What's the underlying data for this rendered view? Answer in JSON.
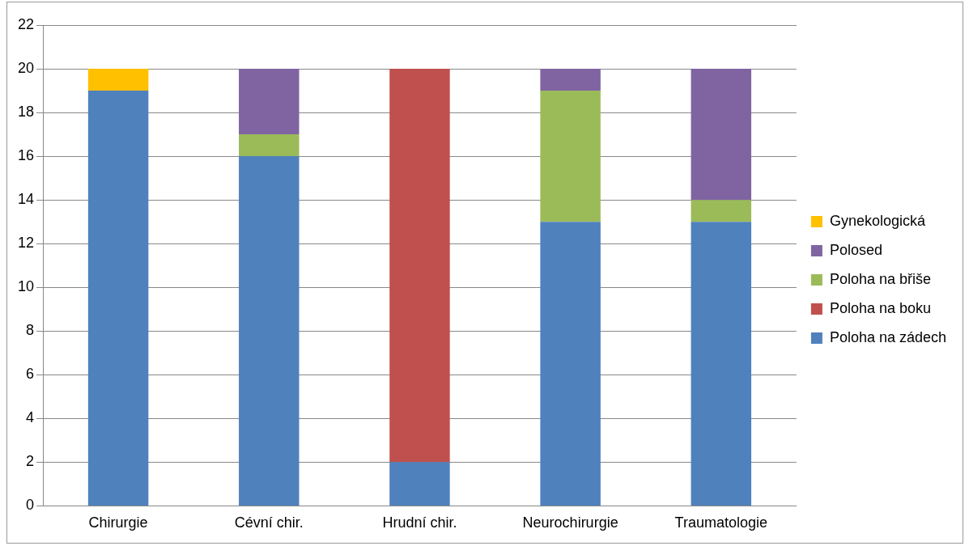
{
  "chart_data": {
    "type": "bar",
    "stacked": true,
    "categories": [
      "Chirurgie",
      "Cévní chir.",
      "Hrudní chir.",
      "Neurochirurgie",
      "Traumatologie"
    ],
    "series": [
      {
        "name": "Poloha na zádech",
        "color": "#4f81bd",
        "values": [
          19,
          16,
          2,
          13,
          13
        ]
      },
      {
        "name": "Poloha na boku",
        "color": "#c0504d",
        "values": [
          null,
          null,
          18,
          null,
          null
        ]
      },
      {
        "name": "Poloha na břiše",
        "color": "#9bbb59",
        "values": [
          null,
          1,
          null,
          6,
          1
        ]
      },
      {
        "name": "Polosed",
        "color": "#8064a2",
        "values": [
          null,
          3,
          null,
          1,
          6
        ]
      },
      {
        "name": "Gynekologická",
        "color": "#ffc000",
        "values": [
          1,
          null,
          null,
          null,
          null
        ]
      }
    ],
    "ylim": [
      0,
      22
    ],
    "yticks": [
      0,
      2,
      4,
      6,
      8,
      10,
      12,
      14,
      16,
      18,
      20,
      22
    ],
    "grid": "y",
    "legend": "right"
  }
}
